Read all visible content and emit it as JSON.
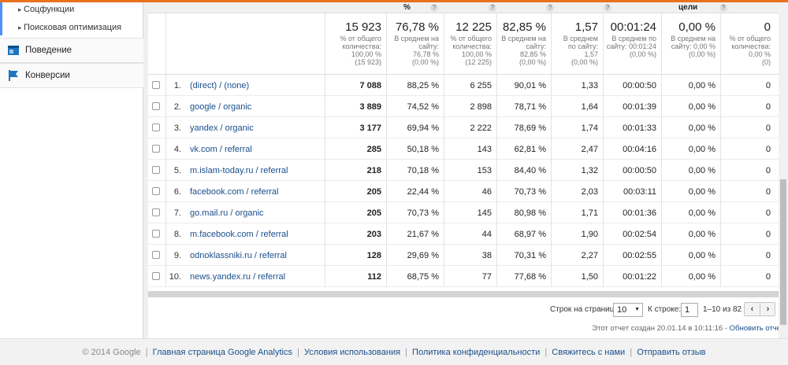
{
  "sidebar": {
    "sub_items": [
      "Соцфункции",
      "Поисковая оптимизация"
    ],
    "main_items": [
      {
        "label": "Поведение",
        "icon": "behavior-icon"
      },
      {
        "label": "Конверсии",
        "icon": "conversions-flag-icon"
      }
    ]
  },
  "header": {
    "labels": [
      "%",
      "цели",
      "?"
    ]
  },
  "summary": [
    {
      "big": "15 923",
      "sub": [
        "% от общего",
        "количества:",
        "100,00 %",
        "(15 923)"
      ]
    },
    {
      "big": "76,78 %",
      "sub": [
        "В среднем на",
        "сайту:",
        "76,78 %",
        "(0,00 %)"
      ]
    },
    {
      "big": "12 225",
      "sub": [
        "% от общего",
        "количества:",
        "100,00 %",
        "(12 225)"
      ]
    },
    {
      "big": "82,85 %",
      "sub": [
        "В среднем на",
        "сайту:",
        "82,85 %",
        "(0,00 %)"
      ]
    },
    {
      "big": "1,57",
      "sub": [
        "В среднем",
        "по сайту:",
        "1,57",
        "(0,00 %)"
      ]
    },
    {
      "big": "00:01:24",
      "sub": [
        "В среднем по",
        "сайту: 00:01:24",
        "(0,00 %)"
      ]
    },
    {
      "big": "0,00 %",
      "sub": [
        "В среднем на",
        "сайту: 0,00 %",
        "(0,00 %)"
      ]
    },
    {
      "big": "0",
      "sub": [
        "% от общего",
        "количества:",
        "0,00 %",
        "(0)"
      ]
    }
  ],
  "rows": [
    {
      "num": "1.",
      "source": "(direct) / (none)",
      "sessions": "7 088",
      "new_pct": "88,25 %",
      "new_users": "6 255",
      "bounce": "90,01 %",
      "pages": "1,33",
      "duration": "00:00:50",
      "conv": "0,00 %",
      "goals": "0"
    },
    {
      "num": "2.",
      "source": "google / organic",
      "sessions": "3 889",
      "new_pct": "74,52 %",
      "new_users": "2 898",
      "bounce": "78,71 %",
      "pages": "1,64",
      "duration": "00:01:39",
      "conv": "0,00 %",
      "goals": "0"
    },
    {
      "num": "3.",
      "source": "yandex / organic",
      "sessions": "3 177",
      "new_pct": "69,94 %",
      "new_users": "2 222",
      "bounce": "78,69 %",
      "pages": "1,74",
      "duration": "00:01:33",
      "conv": "0,00 %",
      "goals": "0"
    },
    {
      "num": "4.",
      "source": "vk.com / referral",
      "sessions": "285",
      "new_pct": "50,18 %",
      "new_users": "143",
      "bounce": "62,81 %",
      "pages": "2,47",
      "duration": "00:04:16",
      "conv": "0,00 %",
      "goals": "0"
    },
    {
      "num": "5.",
      "source": "m.islam-today.ru / referral",
      "sessions": "218",
      "new_pct": "70,18 %",
      "new_users": "153",
      "bounce": "84,40 %",
      "pages": "1,32",
      "duration": "00:00:50",
      "conv": "0,00 %",
      "goals": "0"
    },
    {
      "num": "6.",
      "source": "facebook.com / referral",
      "sessions": "205",
      "new_pct": "22,44 %",
      "new_users": "46",
      "bounce": "70,73 %",
      "pages": "2,03",
      "duration": "00:03:11",
      "conv": "0,00 %",
      "goals": "0"
    },
    {
      "num": "7.",
      "source": "go.mail.ru / organic",
      "sessions": "205",
      "new_pct": "70,73 %",
      "new_users": "145",
      "bounce": "80,98 %",
      "pages": "1,71",
      "duration": "00:01:36",
      "conv": "0,00 %",
      "goals": "0"
    },
    {
      "num": "8.",
      "source": "m.facebook.com / referral",
      "sessions": "203",
      "new_pct": "21,67 %",
      "new_users": "44",
      "bounce": "68,97 %",
      "pages": "1,90",
      "duration": "00:02:54",
      "conv": "0,00 %",
      "goals": "0"
    },
    {
      "num": "9.",
      "source": "odnoklassniki.ru / referral",
      "sessions": "128",
      "new_pct": "29,69 %",
      "new_users": "38",
      "bounce": "70,31 %",
      "pages": "2,27",
      "duration": "00:02:55",
      "conv": "0,00 %",
      "goals": "0"
    },
    {
      "num": "10.",
      "source": "news.yandex.ru / referral",
      "sessions": "112",
      "new_pct": "68,75 %",
      "new_users": "77",
      "bounce": "77,68 %",
      "pages": "1,50",
      "duration": "00:01:22",
      "conv": "0,00 %",
      "goals": "0"
    }
  ],
  "pager": {
    "rows_label": "Строк на странице:",
    "rows_value": "10",
    "goto_label": "К строке:",
    "goto_value": "1",
    "range": "1–10 из 82",
    "prev_icon": "chevron-left-icon",
    "next_icon": "chevron-right-icon"
  },
  "report": {
    "created": "Этот отчет создан 20.01.14 в 10:11:16 -",
    "refresh": "Обновить отчет"
  },
  "footer": {
    "copyright": "© 2014 Google",
    "links": [
      "Главная страница Google Analytics",
      "Условия использования",
      "Политика конфиденциальности",
      "Свяжитесь с нами",
      "Отправить отзыв"
    ]
  },
  "colors": {
    "accent": "#e8711f",
    "link": "#1a4e8c",
    "sidebar_accent": "#4d90fe"
  }
}
